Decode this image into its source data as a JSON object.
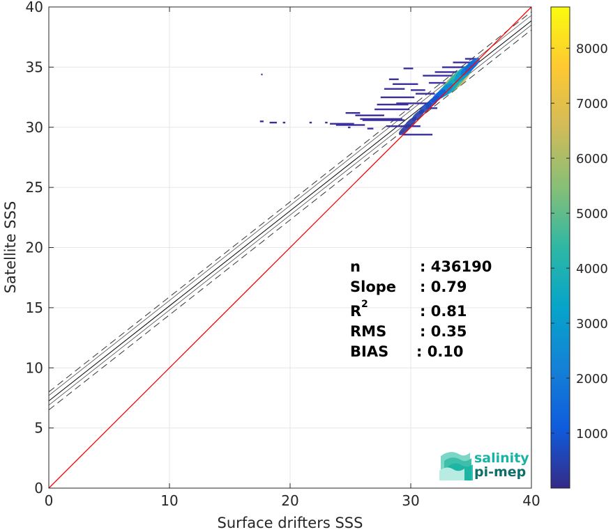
{
  "chart_data": {
    "type": "heatmap",
    "xlabel": "Surface drifters SSS",
    "ylabel": "Satellite SSS",
    "xlim": [
      0,
      40
    ],
    "ylim": [
      0,
      40
    ],
    "x_ticks": [
      "0",
      "10",
      "20",
      "30",
      "40"
    ],
    "y_ticks": [
      "0",
      "5",
      "10",
      "15",
      "20",
      "25",
      "30",
      "35",
      "40"
    ],
    "grid": true,
    "colorbar": {
      "range": [
        0,
        8750
      ],
      "ticks": [
        "1000",
        "2000",
        "3000",
        "4000",
        "5000",
        "6000",
        "7000",
        "8000"
      ],
      "colormap": "parula",
      "color_stops": [
        "#352a87",
        "#0f5cdd",
        "#1481d6",
        "#06a4ca",
        "#2eb7a4",
        "#87bf77",
        "#d1bb59",
        "#fec832",
        "#f9fb0e"
      ]
    },
    "identity_line": {
      "from": [
        0,
        0
      ],
      "to": [
        40,
        40
      ],
      "color": "#ff0000"
    },
    "fit_line": {
      "slope": 0.79,
      "intercept": 7.25,
      "color": "#000000"
    },
    "fit_interval_lines": [
      {
        "slope": 0.79,
        "intercept": 8.0,
        "style": "dashed"
      },
      {
        "slope": 0.79,
        "intercept": 6.5,
        "style": "dashed"
      },
      {
        "slope": 0.79,
        "intercept": 7.7,
        "style": "thin"
      },
      {
        "slope": 0.79,
        "intercept": 6.9,
        "style": "thin"
      }
    ],
    "density_clusters": [
      {
        "x": 33.8,
        "y": 33.9,
        "count": 6500
      },
      {
        "x": 33.5,
        "y": 33.6,
        "count": 5200
      },
      {
        "x": 34.0,
        "y": 34.2,
        "count": 4300
      },
      {
        "x": 33.2,
        "y": 33.3,
        "count": 3600
      },
      {
        "x": 34.4,
        "y": 34.5,
        "count": 3000
      },
      {
        "x": 32.8,
        "y": 33.0,
        "count": 2400
      },
      {
        "x": 34.8,
        "y": 34.9,
        "count": 1800
      },
      {
        "x": 35.1,
        "y": 35.2,
        "count": 1500
      },
      {
        "x": 32.3,
        "y": 32.6,
        "count": 1200
      },
      {
        "x": 31.8,
        "y": 32.1,
        "count": 900
      },
      {
        "x": 31.2,
        "y": 31.6,
        "count": 700
      },
      {
        "x": 30.6,
        "y": 31.0,
        "count": 500
      },
      {
        "x": 30.0,
        "y": 30.4,
        "count": 400
      },
      {
        "x": 29.5,
        "y": 29.8,
        "count": 300
      }
    ],
    "scatter_segments": [
      {
        "x0": 17.6,
        "x1": 17.7,
        "y": 34.4
      },
      {
        "x0": 17.5,
        "x1": 17.8,
        "y": 30.5
      },
      {
        "x0": 18.3,
        "x1": 18.9,
        "y": 30.4
      },
      {
        "x0": 19.4,
        "x1": 19.6,
        "y": 30.4
      },
      {
        "x0": 21.6,
        "x1": 21.8,
        "y": 30.4
      },
      {
        "x0": 22.9,
        "x1": 23.1,
        "y": 30.4
      },
      {
        "x0": 23.3,
        "x1": 25.3,
        "y": 30.3
      },
      {
        "x0": 23.8,
        "x1": 26.2,
        "y": 30.2
      },
      {
        "x0": 24.6,
        "x1": 25.8,
        "y": 31.2
      },
      {
        "x0": 24.8,
        "x1": 25.0,
        "y": 30.0
      },
      {
        "x0": 25.4,
        "x1": 27.8,
        "y": 31.0
      },
      {
        "x0": 25.8,
        "x1": 29.3,
        "y": 30.7
      },
      {
        "x0": 26.0,
        "x1": 29.5,
        "y": 30.6
      },
      {
        "x0": 26.4,
        "x1": 26.9,
        "y": 29.9
      },
      {
        "x0": 27.0,
        "x1": 29.9,
        "y": 31.5
      },
      {
        "x0": 27.2,
        "x1": 29.8,
        "y": 31.9
      },
      {
        "x0": 27.5,
        "x1": 30.3,
        "y": 32.5
      },
      {
        "x0": 27.8,
        "x1": 29.5,
        "y": 33.2
      },
      {
        "x0": 28.0,
        "x1": 30.8,
        "y": 30.1
      },
      {
        "x0": 28.2,
        "x1": 29.0,
        "y": 34.0
      },
      {
        "x0": 28.8,
        "x1": 31.5,
        "y": 32.0
      },
      {
        "x0": 28.5,
        "x1": 30.6,
        "y": 33.6
      },
      {
        "x0": 29.3,
        "x1": 31.8,
        "y": 29.4
      },
      {
        "x0": 29.4,
        "x1": 30.2,
        "y": 34.9
      },
      {
        "x0": 30.0,
        "x1": 31.2,
        "y": 33.1
      },
      {
        "x0": 30.4,
        "x1": 32.0,
        "y": 32.8
      },
      {
        "x0": 31.0,
        "x1": 33.5,
        "y": 34.3
      },
      {
        "x0": 31.5,
        "x1": 33.0,
        "y": 33.7
      },
      {
        "x0": 32.0,
        "x1": 34.6,
        "y": 34.6
      },
      {
        "x0": 32.6,
        "x1": 34.8,
        "y": 35.0
      },
      {
        "x0": 31.3,
        "x1": 32.2,
        "y": 31.6
      },
      {
        "x0": 33.5,
        "x1": 35.2,
        "y": 35.4
      },
      {
        "x0": 34.5,
        "x1": 35.4,
        "y": 35.7
      }
    ]
  },
  "stats": {
    "n_label": "n",
    "n_value": ": 436190",
    "slope_label": "Slope",
    "slope_value": ": 0.79",
    "r2_label": "R",
    "r2_sup": "2",
    "r2_value": ": 0.81",
    "rms_label": "RMS",
    "rms_value": ": 0.35",
    "bias_label": "BIAS",
    "bias_value": ": 0.10"
  },
  "logo": {
    "line1": "salinity",
    "line2": "pi-mep",
    "colors": [
      "#17b3a3",
      "#0f6e6a",
      "#7ad6c6"
    ]
  }
}
